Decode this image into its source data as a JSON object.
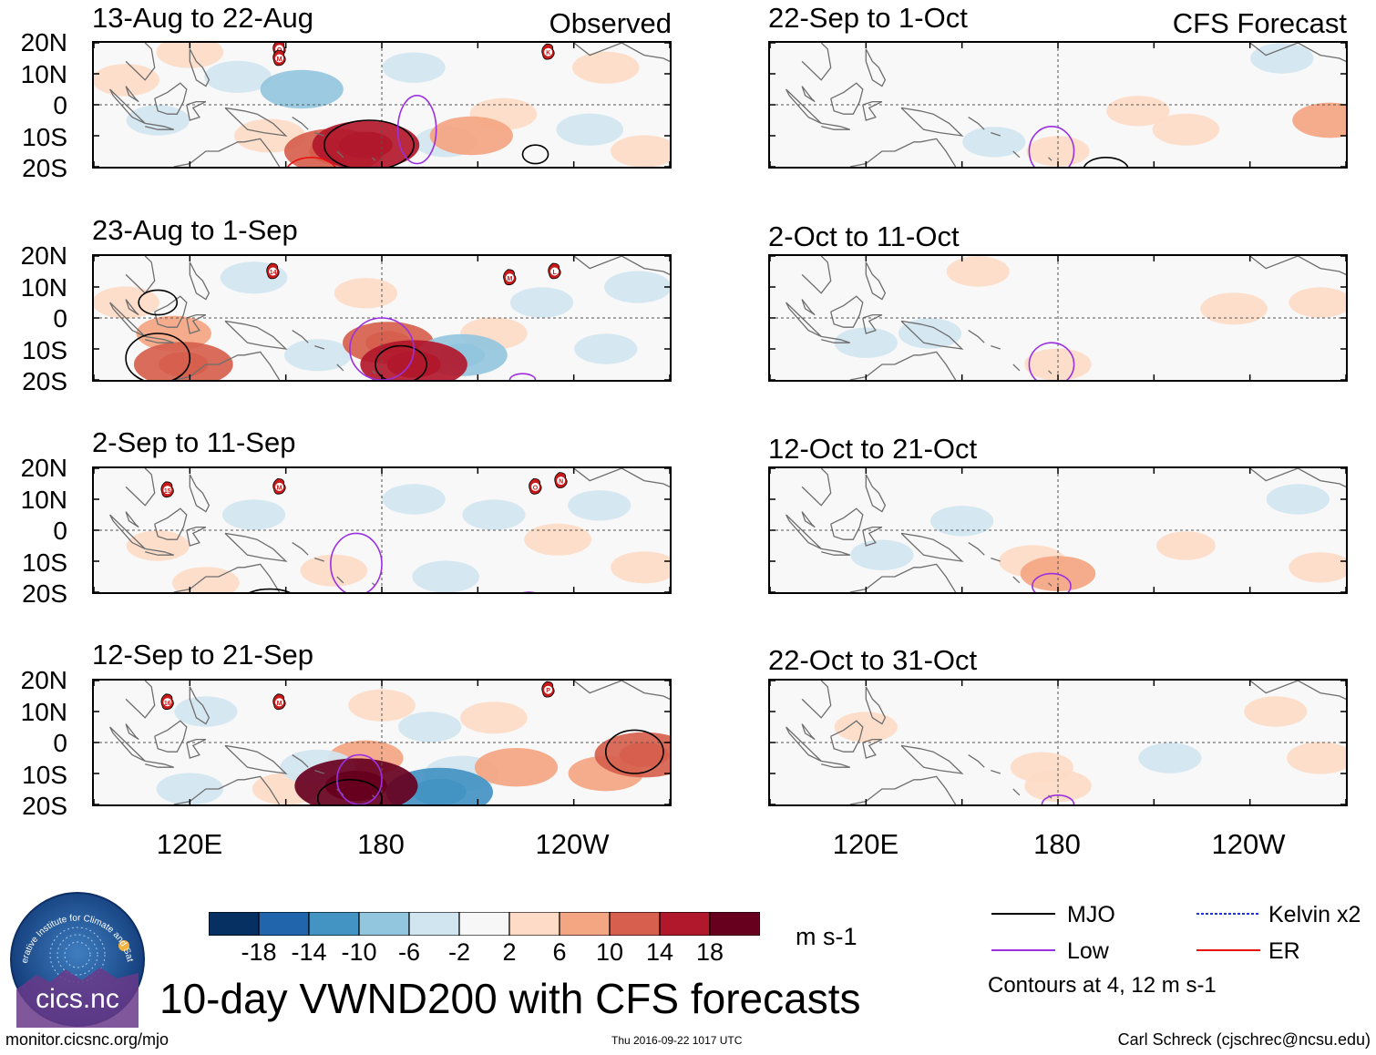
{
  "figure": {
    "main_title": "10-day VWND200 with CFS forecasts",
    "left_column_title": "Observed",
    "right_column_title": "CFS Forecast",
    "units": "m s-1",
    "website": "monitor.cicsnc.org/mjo",
    "timestamp": "Thu 2016-09-22 1017 UTC",
    "credit": "Carl Schreck (cjschrec@ncsu.edu)",
    "logo_text": "cics.nc",
    "logo_ring_text": "Cooperative Institute for Climate and Satellites"
  },
  "chart_data": {
    "type": "heatmap",
    "variable": "200-hPa meridional wind anomaly (VWND200), 10-day mean",
    "lat_ticks": [
      "20N",
      "10N",
      "0",
      "10S",
      "20S"
    ],
    "lon_ticks": [
      "120E",
      "180",
      "120W"
    ],
    "lat_range": [
      -20,
      20
    ],
    "lon_range": [
      90,
      270
    ],
    "panels": [
      {
        "id": "obs1",
        "title": "13-Aug to 22-Aug",
        "column": "observed",
        "storms": [
          {
            "label": "O",
            "lon": 148,
            "lat": 18
          },
          {
            "label": "M",
            "lon": 148,
            "lat": 15
          },
          {
            "label": "K",
            "lon": 232,
            "lat": 17
          }
        ],
        "blobs": [
          {
            "lon": 155,
            "lat": 5,
            "value": -8
          },
          {
            "lon": 135,
            "lat": 9,
            "value": -4
          },
          {
            "lon": 110,
            "lat": -5,
            "value": -3
          },
          {
            "lon": 100,
            "lat": 8,
            "value": 4
          },
          {
            "lon": 175,
            "lat": -13,
            "value": 14
          },
          {
            "lon": 165,
            "lat": -15,
            "value": 12
          },
          {
            "lon": 145,
            "lat": -10,
            "value": 5
          },
          {
            "lon": 208,
            "lat": -10,
            "value": 8
          },
          {
            "lon": 218,
            "lat": -3,
            "value": 4
          },
          {
            "lon": 200,
            "lat": -12,
            "value": -3
          },
          {
            "lon": 245,
            "lat": -8,
            "value": -4
          },
          {
            "lon": 190,
            "lat": 12,
            "value": -3
          },
          {
            "lon": 250,
            "lat": 12,
            "value": 4
          },
          {
            "lon": 262,
            "lat": -15,
            "value": 4
          },
          {
            "lon": 120,
            "lat": 17,
            "value": 4
          }
        ],
        "contours": [
          {
            "kind": "MJO",
            "lon": 176,
            "lat": -13,
            "rlon": 14,
            "rlat": 8
          },
          {
            "kind": "Low",
            "lon": 191,
            "lat": -8,
            "rlon": 6,
            "rlat": 11
          },
          {
            "kind": "ER",
            "lon": 158,
            "lat": -22,
            "rlon": 8,
            "rlat": 5
          },
          {
            "kind": "MJO",
            "lon": 228,
            "lat": -16,
            "rlon": 4,
            "rlat": 3
          }
        ]
      },
      {
        "id": "obs2",
        "title": "23-Aug to 1-Sep",
        "column": "observed",
        "storms": [
          {
            "label": "14",
            "lon": 146,
            "lat": 15
          },
          {
            "label": "M",
            "lon": 220,
            "lat": 13
          },
          {
            "label": "L",
            "lon": 234,
            "lat": 15
          }
        ],
        "blobs": [
          {
            "lon": 100,
            "lat": 5,
            "value": 4
          },
          {
            "lon": 118,
            "lat": -15,
            "value": 12
          },
          {
            "lon": 115,
            "lat": -5,
            "value": 6
          },
          {
            "lon": 140,
            "lat": 13,
            "value": -4
          },
          {
            "lon": 160,
            "lat": -12,
            "value": -4
          },
          {
            "lon": 182,
            "lat": -8,
            "value": 10
          },
          {
            "lon": 190,
            "lat": -15,
            "value": 14
          },
          {
            "lon": 205,
            "lat": -12,
            "value": -10
          },
          {
            "lon": 215,
            "lat": -5,
            "value": 4
          },
          {
            "lon": 230,
            "lat": 5,
            "value": -3
          },
          {
            "lon": 250,
            "lat": -10,
            "value": -3
          },
          {
            "lon": 260,
            "lat": 10,
            "value": -4
          },
          {
            "lon": 175,
            "lat": 8,
            "value": 3
          }
        ],
        "contours": [
          {
            "kind": "MJO",
            "lon": 110,
            "lat": -13,
            "rlon": 10,
            "rlat": 8
          },
          {
            "kind": "MJO",
            "lon": 110,
            "lat": 5,
            "rlon": 6,
            "rlat": 4
          },
          {
            "kind": "MJO",
            "lon": 186,
            "lat": -15,
            "rlon": 8,
            "rlat": 6
          },
          {
            "kind": "Low",
            "lon": 180,
            "lat": -10,
            "rlon": 10,
            "rlat": 10
          },
          {
            "kind": "Low",
            "lon": 224,
            "lat": -20,
            "rlon": 4,
            "rlat": 2
          }
        ]
      },
      {
        "id": "obs3",
        "title": "2-Sep to 11-Sep",
        "column": "observed",
        "storms": [
          {
            "label": "15",
            "lon": 113,
            "lat": 13
          },
          {
            "label": "M",
            "lon": 148,
            "lat": 14
          },
          {
            "label": "O",
            "lon": 228,
            "lat": 14
          },
          {
            "label": "N",
            "lon": 236,
            "lat": 16
          }
        ],
        "blobs": [
          {
            "lon": 110,
            "lat": -5,
            "value": 3
          },
          {
            "lon": 125,
            "lat": -17,
            "value": 4
          },
          {
            "lon": 140,
            "lat": 5,
            "value": -3
          },
          {
            "lon": 165,
            "lat": -13,
            "value": 4
          },
          {
            "lon": 190,
            "lat": 10,
            "value": -3
          },
          {
            "lon": 215,
            "lat": 5,
            "value": -3
          },
          {
            "lon": 235,
            "lat": -3,
            "value": 4
          },
          {
            "lon": 248,
            "lat": 8,
            "value": -3
          },
          {
            "lon": 262,
            "lat": -12,
            "value": 4
          },
          {
            "lon": 200,
            "lat": -15,
            "value": -4
          },
          {
            "lon": 180,
            "lat": -2,
            "value": -2
          }
        ],
        "contours": [
          {
            "kind": "Low",
            "lon": 172,
            "lat": -11,
            "rlon": 8,
            "rlat": 10
          },
          {
            "kind": "MJO",
            "lon": 145,
            "lat": -22,
            "rlon": 8,
            "rlat": 3
          },
          {
            "kind": "Low",
            "lon": 226,
            "lat": -21,
            "rlon": 3,
            "rlat": 1
          }
        ]
      },
      {
        "id": "obs4",
        "title": "12-Sep to 21-Sep",
        "column": "observed",
        "storms": [
          {
            "label": "16",
            "lon": 113,
            "lat": 13
          },
          {
            "label": "M",
            "lon": 148,
            "lat": 13
          },
          {
            "label": "P",
            "lon": 232,
            "lat": 17
          }
        ],
        "blobs": [
          {
            "lon": 172,
            "lat": -14,
            "value": 18
          },
          {
            "lon": 175,
            "lat": -5,
            "value": 6
          },
          {
            "lon": 198,
            "lat": -16,
            "value": -14
          },
          {
            "lon": 205,
            "lat": -10,
            "value": -6
          },
          {
            "lon": 160,
            "lat": -8,
            "value": -6
          },
          {
            "lon": 150,
            "lat": -15,
            "value": 4
          },
          {
            "lon": 222,
            "lat": -8,
            "value": 8
          },
          {
            "lon": 215,
            "lat": 8,
            "value": 4
          },
          {
            "lon": 262,
            "lat": -4,
            "value": 12
          },
          {
            "lon": 250,
            "lat": -10,
            "value": 6
          },
          {
            "lon": 120,
            "lat": -15,
            "value": -4
          },
          {
            "lon": 125,
            "lat": 10,
            "value": -3
          },
          {
            "lon": 180,
            "lat": 12,
            "value": 4
          },
          {
            "lon": 195,
            "lat": 5,
            "value": -3
          }
        ],
        "contours": [
          {
            "kind": "MJO",
            "lon": 170,
            "lat": -18,
            "rlon": 10,
            "rlat": 6
          },
          {
            "kind": "Low",
            "lon": 173,
            "lat": -12,
            "rlon": 7,
            "rlat": 8
          },
          {
            "kind": "MJO",
            "lon": 259,
            "lat": -3,
            "rlon": 9,
            "rlat": 7
          }
        ]
      },
      {
        "id": "fc1",
        "title": "22-Sep to 1-Oct",
        "column": "forecast",
        "blobs": [
          {
            "lon": 205,
            "lat": -2,
            "value": 3
          },
          {
            "lon": 220,
            "lat": -8,
            "value": 4
          },
          {
            "lon": 265,
            "lat": -5,
            "value": 6
          },
          {
            "lon": 160,
            "lat": -12,
            "value": -3
          },
          {
            "lon": 180,
            "lat": -15,
            "value": 3
          },
          {
            "lon": 120,
            "lat": 10,
            "value": -2
          },
          {
            "lon": 250,
            "lat": 15,
            "value": -3
          },
          {
            "lon": 230,
            "lat": 0,
            "value": -2
          }
        ],
        "contours": [
          {
            "kind": "Low",
            "lon": 178,
            "lat": -15,
            "rlon": 7,
            "rlat": 8
          },
          {
            "kind": "MJO",
            "lon": 195,
            "lat": -21,
            "rlon": 7,
            "rlat": 4
          }
        ]
      },
      {
        "id": "fc2",
        "title": "2-Oct to 11-Oct",
        "column": "forecast",
        "blobs": [
          {
            "lon": 120,
            "lat": -8,
            "value": -3
          },
          {
            "lon": 140,
            "lat": -5,
            "value": -3
          },
          {
            "lon": 155,
            "lat": 15,
            "value": 3
          },
          {
            "lon": 180,
            "lat": -15,
            "value": 4
          },
          {
            "lon": 235,
            "lat": 3,
            "value": 4
          },
          {
            "lon": 262,
            "lat": 5,
            "value": 3
          },
          {
            "lon": 215,
            "lat": -5,
            "value": -2
          },
          {
            "lon": 245,
            "lat": -12,
            "value": -2
          }
        ],
        "contours": [
          {
            "kind": "Low",
            "lon": 178,
            "lat": -15,
            "rlon": 7,
            "rlat": 7
          }
        ]
      },
      {
        "id": "fc3",
        "title": "12-Oct to 21-Oct",
        "column": "forecast",
        "blobs": [
          {
            "lon": 125,
            "lat": -8,
            "value": -3
          },
          {
            "lon": 150,
            "lat": 3,
            "value": -3
          },
          {
            "lon": 180,
            "lat": -14,
            "value": 6
          },
          {
            "lon": 172,
            "lat": -10,
            "value": 4
          },
          {
            "lon": 255,
            "lat": 10,
            "value": -3
          },
          {
            "lon": 262,
            "lat": -12,
            "value": 3
          },
          {
            "lon": 220,
            "lat": -5,
            "value": 2
          }
        ],
        "contours": [
          {
            "kind": "Low",
            "lon": 178,
            "lat": -18,
            "rlon": 6,
            "rlat": 4
          }
        ]
      },
      {
        "id": "fc4",
        "title": "22-Oct to 31-Oct",
        "column": "forecast",
        "blobs": [
          {
            "lon": 180,
            "lat": -14,
            "value": 4
          },
          {
            "lon": 175,
            "lat": -8,
            "value": 3
          },
          {
            "lon": 215,
            "lat": -5,
            "value": -3
          },
          {
            "lon": 235,
            "lat": -8,
            "value": -2
          },
          {
            "lon": 262,
            "lat": -5,
            "value": 4
          },
          {
            "lon": 248,
            "lat": 10,
            "value": 3
          },
          {
            "lon": 120,
            "lat": 5,
            "value": 3
          }
        ],
        "contours": [
          {
            "kind": "Low",
            "lon": 180,
            "lat": -20,
            "rlon": 5,
            "rlat": 3
          }
        ]
      }
    ],
    "colorbar": {
      "labels": [
        "-18",
        "-14",
        "-10",
        "-6",
        "-2",
        "2",
        "6",
        "10",
        "14",
        "18"
      ],
      "colors": [
        "#053061",
        "#2166ac",
        "#4393c3",
        "#92c5de",
        "#d1e5f0",
        "#f7f7f7",
        "#fddbc7",
        "#f4a582",
        "#d6604d",
        "#b2182b",
        "#67001f"
      ]
    },
    "legend": [
      {
        "label": "MJO",
        "color": "#000000",
        "style": "solid"
      },
      {
        "label": "Kelvin x2",
        "color": "#1f33d6",
        "style": "dashed"
      },
      {
        "label": "Low",
        "color": "#9b30e0",
        "style": "solid"
      },
      {
        "label": "ER",
        "color": "#e8100f",
        "style": "solid"
      }
    ],
    "contour_note": "Contours at 4, 12 m s-1"
  }
}
